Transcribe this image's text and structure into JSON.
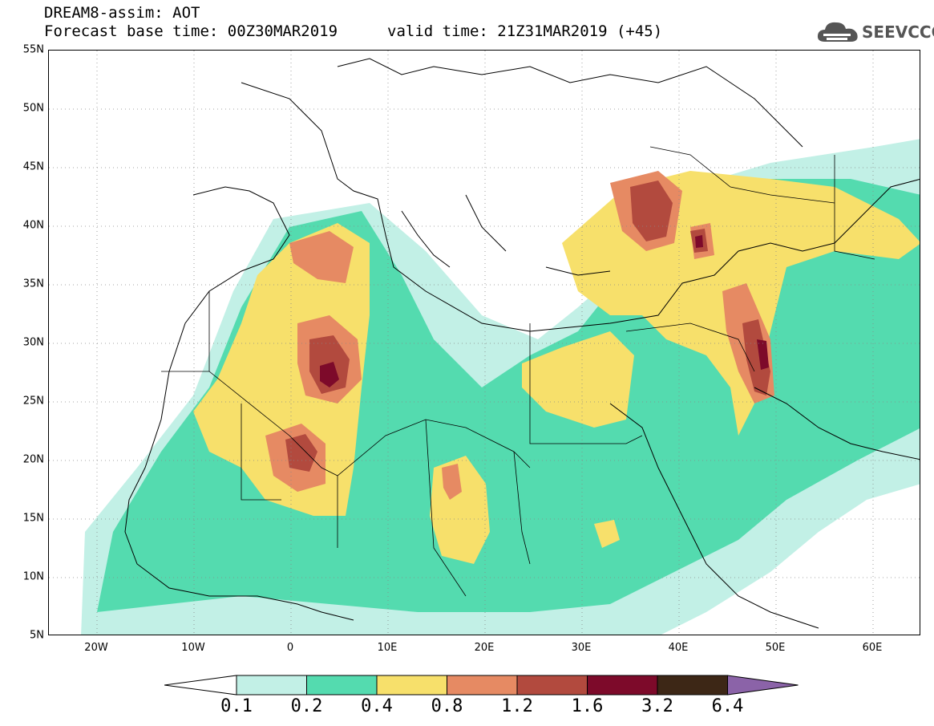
{
  "header": {
    "title": "DREAM8-assim: AOT",
    "base_time": "Forecast base time: 00Z30MAR2019",
    "valid_time": "valid time: 21Z31MAR2019 (+45)"
  },
  "logo": {
    "text": "SEEVCCC",
    "icon": "cloud-icon",
    "color": "#555555"
  },
  "map": {
    "variable": "AOT",
    "projection": "lat-lon",
    "lon_range": [
      -25,
      65
    ],
    "lat_range": [
      5,
      55
    ],
    "lat_labels": [
      "55N",
      "50N",
      "45N",
      "40N",
      "35N",
      "30N",
      "25N",
      "20N",
      "15N",
      "10N",
      "5N"
    ],
    "lon_labels": [
      "20W",
      "10W",
      "0",
      "10E",
      "20E",
      "30E",
      "40E",
      "50E",
      "60E"
    ],
    "grid": "dotted"
  },
  "legend": {
    "levels": [
      "0.1",
      "0.2",
      "0.4",
      "0.8",
      "1.2",
      "1.6",
      "3.2",
      "6.4"
    ],
    "colors": [
      "#c2f0e6",
      "#54dbaf",
      "#f7e06b",
      "#e68a63",
      "#b24a3e",
      "#7d0a2a",
      "#3d2716",
      "#8b63a8"
    ],
    "under_color": "#ffffff"
  }
}
